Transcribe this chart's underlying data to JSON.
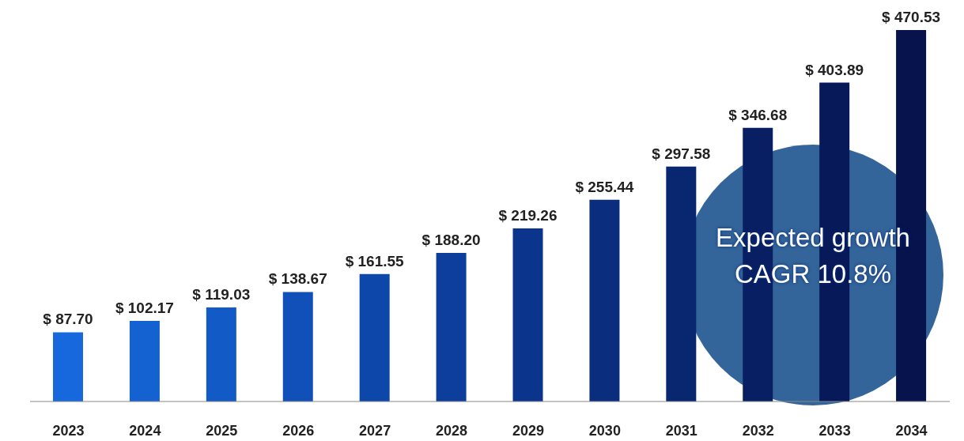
{
  "chart_data": {
    "type": "bar",
    "categories": [
      "2023",
      "2024",
      "2025",
      "2026",
      "2027",
      "2028",
      "2029",
      "2030",
      "2031",
      "2032",
      "2033",
      "2034"
    ],
    "values": [
      87.7,
      102.17,
      119.03,
      138.67,
      161.55,
      188.2,
      219.26,
      255.44,
      297.58,
      346.68,
      403.89,
      470.53
    ],
    "colors": [
      "#1668dc",
      "#1462d2",
      "#125ac6",
      "#1050b8",
      "#0e47aa",
      "#0d3e9c",
      "#0b358c",
      "#0a2d7e",
      "#092670",
      "#081f63",
      "#071958",
      "#06134c"
    ],
    "value_labels": [
      "$ 87.70",
      "$ 102.17",
      "$ 119.03",
      "$ 138.67",
      "$ 161.55",
      "$ 188.20",
      "$ 219.26",
      "$ 255.44",
      "$ 297.58",
      "$ 346.68",
      "$ 403.89",
      "$ 470.53"
    ],
    "annotations": [
      "Expected growth CAGR 10.8%"
    ],
    "grid": false,
    "legend": false
  }
}
